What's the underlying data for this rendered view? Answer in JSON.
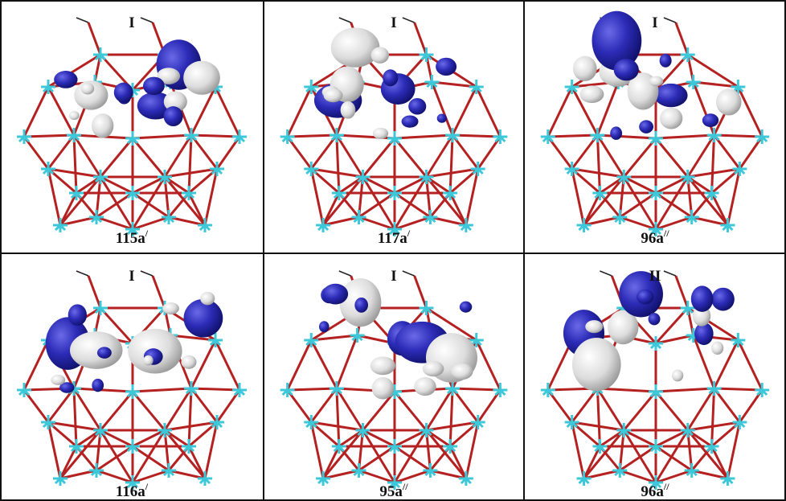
{
  "panels": [
    {
      "top": "I",
      "bottom": "115a",
      "bottom_sup": "/"
    },
    {
      "top": "I",
      "bottom": "117a",
      "bottom_sup": "/"
    },
    {
      "top": "I",
      "bottom": "96a",
      "bottom_sup": "//"
    },
    {
      "top": "I",
      "bottom": "116a",
      "bottom_sup": "/"
    },
    {
      "top": "I",
      "bottom": "95a",
      "bottom_sup": "//"
    },
    {
      "top": "II",
      "bottom": "96a",
      "bottom_sup": "//"
    }
  ]
}
